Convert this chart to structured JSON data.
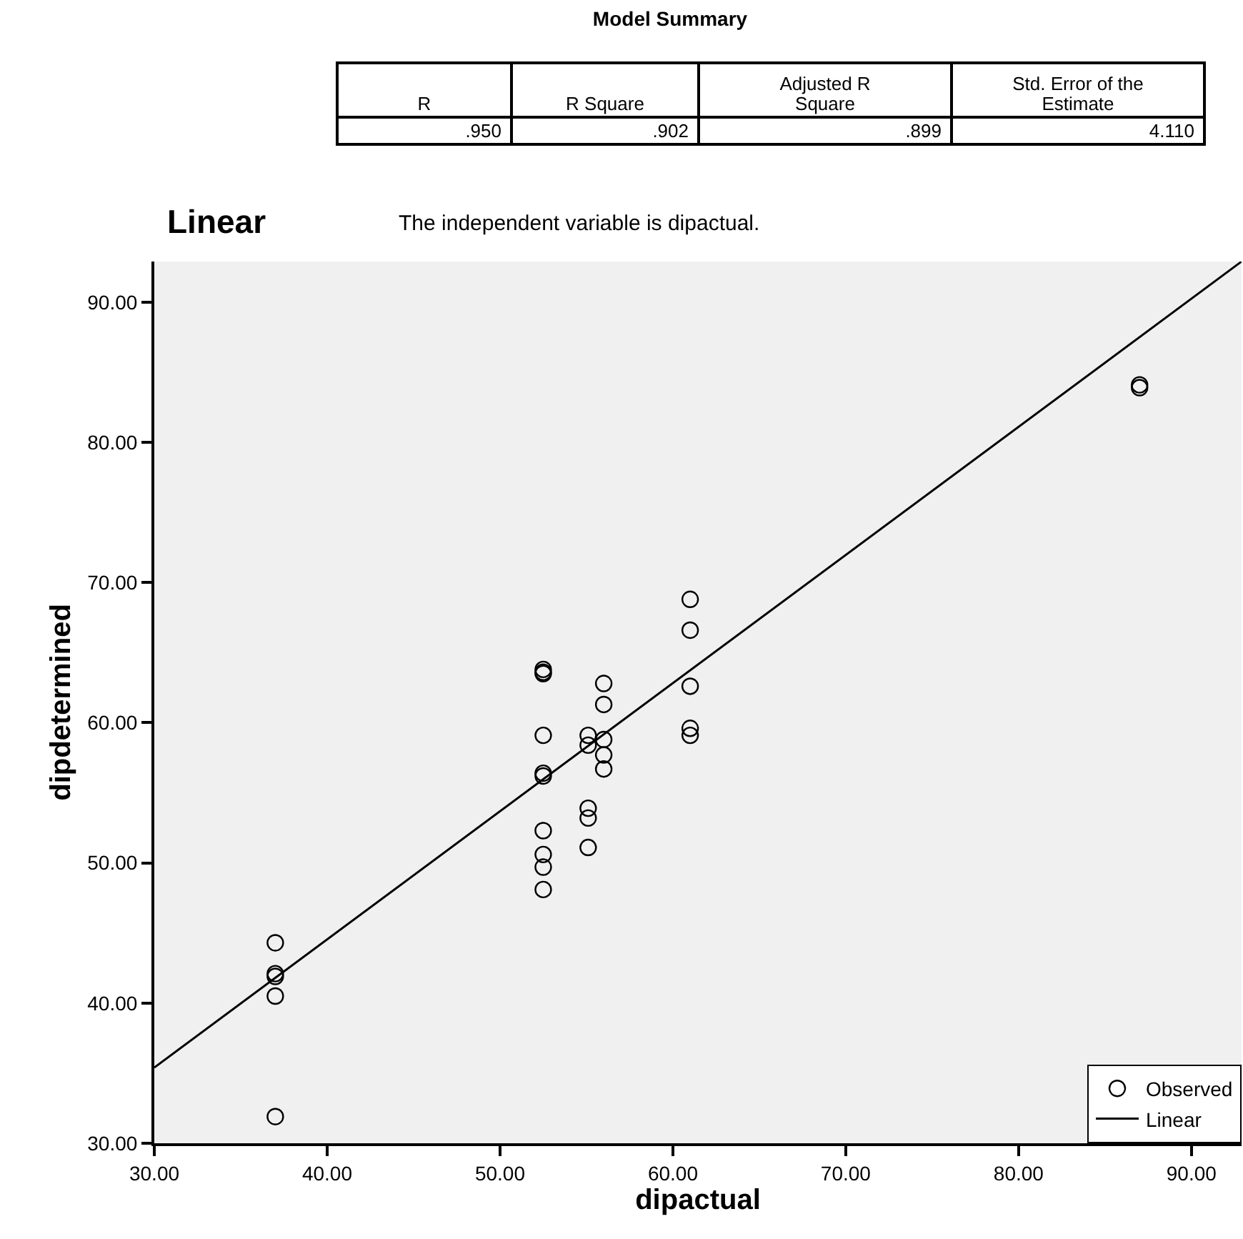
{
  "chart_data": {
    "type": "scatter",
    "title": "Linear",
    "xlabel": "dipactual",
    "ylabel": "dipdetermined",
    "annotations": [
      "Model Summary",
      "R",
      "R Square",
      "Adjusted R Square",
      "Std. Error of the Estimate",
      ".950",
      ".902",
      ".899",
      "4.110",
      "The independent variable is dipactual."
    ],
    "series": [
      {
        "name": "Observed",
        "marker": "circle",
        "color": "#000000",
        "x": [
          37,
          37,
          37,
          37,
          37,
          52.5,
          52.5,
          52.5,
          52.5,
          52.5,
          52.5,
          52.5,
          52.5,
          52.5,
          52.5,
          55.1,
          55.1,
          55.1,
          55.1,
          55.1,
          56,
          56,
          56,
          56,
          56,
          61,
          61,
          61,
          61,
          61,
          87,
          87
        ],
        "values": [
          44.3,
          42.1,
          41.9,
          40.5,
          31.9,
          63.8,
          63.5,
          59.1,
          56.4,
          56.2,
          52.3,
          50.6,
          49.7,
          48.1,
          63.6,
          59.1,
          58.4,
          53.9,
          53.2,
          51.1,
          62.8,
          61.3,
          58.8,
          57.7,
          56.7,
          68.8,
          66.6,
          62.6,
          59.6,
          59.1,
          84.1,
          83.9
        ]
      },
      {
        "name": "Linear",
        "type": "line",
        "marker": "none",
        "color": "#000000",
        "x": [
          30,
          92.9
        ],
        "values": [
          35.4,
          92.9
        ]
      }
    ],
    "xlim": [
      30,
      92.9
    ],
    "ylim": [
      30,
      92.9
    ],
    "xticks": [
      {
        "value": 30,
        "label": "30.00"
      },
      {
        "value": 40,
        "label": "40.00"
      },
      {
        "value": 50,
        "label": "50.00"
      },
      {
        "value": 60,
        "label": "60.00"
      },
      {
        "value": 70,
        "label": "70.00"
      },
      {
        "value": 80,
        "label": "80.00"
      },
      {
        "value": 90,
        "label": "90.00"
      }
    ],
    "yticks": [
      {
        "value": 30,
        "label": "30.00"
      },
      {
        "value": 40,
        "label": "40.00"
      },
      {
        "value": 50,
        "label": "50.00"
      },
      {
        "value": 60,
        "label": "60.00"
      },
      {
        "value": 70,
        "label": "70.00"
      },
      {
        "value": 80,
        "label": "80.00"
      },
      {
        "value": 90,
        "label": "90.00"
      }
    ],
    "grid": false,
    "legend": "bottom right"
  }
}
